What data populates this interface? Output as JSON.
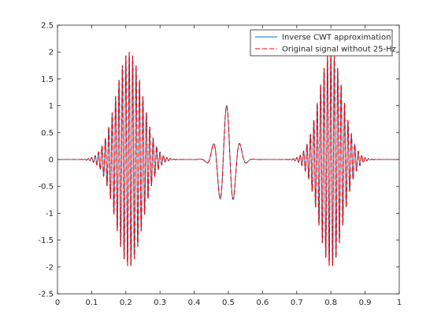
{
  "chart_data": {
    "type": "line",
    "title": "",
    "xlabel": "",
    "ylabel": "",
    "xlim": [
      0,
      1
    ],
    "ylim": [
      -2.5,
      2.5
    ],
    "x_ticks": [
      0,
      0.1,
      0.2,
      0.3,
      0.4,
      0.5,
      0.6,
      0.7,
      0.8,
      0.9,
      1
    ],
    "x_tick_labels": [
      "0",
      "0.1",
      "0.2",
      "0.3",
      "0.4",
      "0.5",
      "0.6",
      "0.7",
      "0.8",
      "0.9",
      "1"
    ],
    "y_ticks": [
      -2.5,
      -2,
      -1.5,
      -1,
      -0.5,
      0,
      0.5,
      1,
      1.5,
      2,
      2.5
    ],
    "y_tick_labels": [
      "-2.5",
      "-2",
      "-1.5",
      "-1",
      "-0.5",
      "0",
      "0.5",
      "1",
      "1.5",
      "2",
      "2.5"
    ],
    "grid": false,
    "legend_position": "top-right",
    "components": [
      {
        "center": 0.21,
        "amplitude": 2.0,
        "width": 0.055,
        "frequency_hz": 100
      },
      {
        "center": 0.8,
        "amplitude": 2.0,
        "width": 0.05,
        "frequency_hz": 100
      },
      {
        "center": 0.495,
        "amplitude": 1.0,
        "width": 0.035,
        "frequency_hz": 25
      }
    ],
    "series": [
      {
        "name": "Inverse CWT approximation",
        "color": "#0072bd",
        "style": "solid"
      },
      {
        "name": "Original signal without 25-Hz",
        "color": "#ff0000",
        "style": "dashed"
      }
    ]
  }
}
